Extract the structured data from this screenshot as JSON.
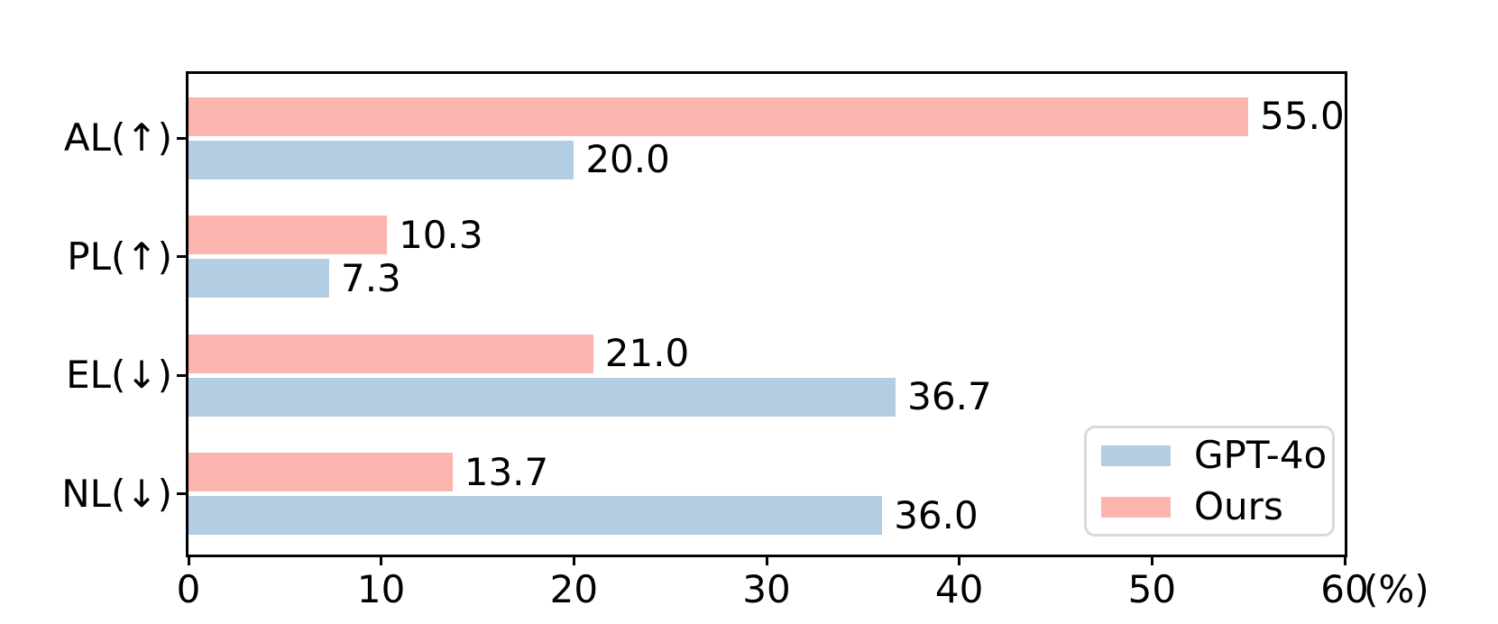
{
  "chart_data": {
    "type": "bar",
    "orientation": "horizontal",
    "title": "",
    "categories": [
      "AL(↑)",
      "PL(↑)",
      "EL(↓)",
      "NL(↓)"
    ],
    "series": [
      {
        "name": "GPT-4o",
        "color": "#b3cde3",
        "row": "bottom",
        "values": [
          20.0,
          7.3,
          36.7,
          36.0
        ],
        "value_labels": [
          "20.0",
          "7.3",
          "36.7",
          "36.0"
        ]
      },
      {
        "name": "Ours",
        "color": "#fbb4ae",
        "row": "top",
        "values": [
          55.0,
          10.3,
          21.0,
          13.7
        ],
        "value_labels": [
          "55.0",
          "10.3",
          "21.0",
          "13.7"
        ]
      }
    ],
    "xlim": [
      0,
      60
    ],
    "xtick_values": [
      0,
      10,
      20,
      30,
      40,
      50,
      60
    ],
    "xtick_labels": [
      "0",
      "10",
      "20",
      "30",
      "40",
      "50",
      "60"
    ],
    "x_unit_label": "(%)",
    "grid": false,
    "legend": {
      "position": "lower-right",
      "order": [
        "GPT-4o",
        "Ours"
      ]
    },
    "colors": {
      "axis": "#000000",
      "text": "#000000",
      "legend_border": "#d9d9d9"
    }
  }
}
